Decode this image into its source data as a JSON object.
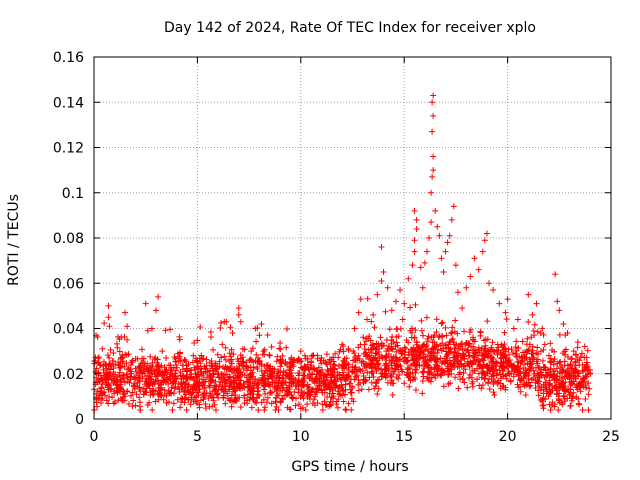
{
  "chart_data": {
    "type": "scatter",
    "title": "Day 142 of 2024, Rate Of TEC Index for receiver xplo",
    "xlabel": "GPS time / hours",
    "ylabel": "ROTI / TECUs",
    "xlim": [
      0,
      25
    ],
    "ylim": [
      0,
      0.16
    ],
    "xticks": [
      0,
      5,
      10,
      15,
      20,
      25
    ],
    "yticks": [
      0,
      0.02,
      0.04,
      0.06,
      0.08,
      0.1,
      0.12,
      0.14,
      0.16
    ],
    "xtick_labels": [
      "0",
      "5",
      "10",
      "15",
      "20",
      "25"
    ],
    "ytick_labels": [
      "0",
      "0.02",
      "0.04",
      "0.06",
      "0.08",
      "0.1",
      "0.12",
      "0.14",
      "0.16"
    ],
    "grid": true,
    "marker": "+",
    "color": "#ff0000",
    "series": [
      {
        "name": "ROTI",
        "points": [
          [
            0.1,
            0.037
          ],
          [
            0.2,
            0.025
          ],
          [
            0.4,
            0.031
          ],
          [
            0.7,
            0.05
          ],
          [
            0.7,
            0.045
          ],
          [
            0.75,
            0.041
          ],
          [
            1.5,
            0.047
          ],
          [
            1.6,
            0.041
          ],
          [
            1.6,
            0.035
          ],
          [
            2.5,
            0.051
          ],
          [
            2.6,
            0.039
          ],
          [
            2.8,
            0.04
          ],
          [
            3.1,
            0.054
          ],
          [
            3.0,
            0.048
          ],
          [
            3.3,
            0.03
          ],
          [
            4.3,
            0.022
          ],
          [
            4.8,
            0.028
          ],
          [
            5.5,
            0.021
          ],
          [
            6.2,
            0.033
          ],
          [
            6.3,
            0.043
          ],
          [
            6.4,
            0.043
          ],
          [
            6.7,
            0.038
          ],
          [
            7.0,
            0.049
          ],
          [
            7.0,
            0.046
          ],
          [
            7.1,
            0.043
          ],
          [
            7.2,
            0.031
          ],
          [
            7.6,
            0.03
          ],
          [
            7.8,
            0.04
          ],
          [
            8.0,
            0.037
          ],
          [
            8.1,
            0.042
          ],
          [
            8.5,
            0.028
          ],
          [
            9.0,
            0.026
          ],
          [
            9.6,
            0.024
          ],
          [
            10.0,
            0.03
          ],
          [
            10.2,
            0.028
          ],
          [
            10.5,
            0.025
          ],
          [
            11.0,
            0.027
          ],
          [
            11.5,
            0.022
          ],
          [
            12.0,
            0.033
          ],
          [
            12.3,
            0.031
          ],
          [
            12.6,
            0.04
          ],
          [
            12.8,
            0.047
          ],
          [
            12.9,
            0.053
          ],
          [
            13.2,
            0.044
          ],
          [
            13.5,
            0.046
          ],
          [
            13.7,
            0.055
          ],
          [
            13.9,
            0.061
          ],
          [
            14.0,
            0.065
          ],
          [
            13.9,
            0.076
          ],
          [
            14.2,
            0.058
          ],
          [
            14.4,
            0.048
          ],
          [
            14.6,
            0.052
          ],
          [
            14.8,
            0.057
          ],
          [
            15.0,
            0.051
          ],
          [
            15.2,
            0.062
          ],
          [
            15.4,
            0.068
          ],
          [
            15.5,
            0.074
          ],
          [
            15.5,
            0.079
          ],
          [
            15.6,
            0.084
          ],
          [
            15.5,
            0.092
          ],
          [
            15.6,
            0.088
          ],
          [
            15.8,
            0.067
          ],
          [
            15.9,
            0.058
          ],
          [
            16.0,
            0.069
          ],
          [
            16.1,
            0.074
          ],
          [
            16.2,
            0.08
          ],
          [
            16.3,
            0.087
          ],
          [
            16.3,
            0.1
          ],
          [
            16.35,
            0.107
          ],
          [
            16.4,
            0.11
          ],
          [
            16.4,
            0.116
          ],
          [
            16.35,
            0.127
          ],
          [
            16.4,
            0.134
          ],
          [
            16.35,
            0.14
          ],
          [
            16.4,
            0.143
          ],
          [
            16.5,
            0.092
          ],
          [
            16.6,
            0.085
          ],
          [
            16.7,
            0.081
          ],
          [
            16.8,
            0.071
          ],
          [
            16.9,
            0.065
          ],
          [
            17.0,
            0.074
          ],
          [
            17.1,
            0.078
          ],
          [
            17.2,
            0.081
          ],
          [
            17.3,
            0.088
          ],
          [
            17.4,
            0.094
          ],
          [
            17.5,
            0.068
          ],
          [
            17.6,
            0.056
          ],
          [
            17.8,
            0.049
          ],
          [
            18.0,
            0.058
          ],
          [
            18.2,
            0.063
          ],
          [
            18.4,
            0.071
          ],
          [
            18.6,
            0.066
          ],
          [
            18.8,
            0.074
          ],
          [
            18.9,
            0.079
          ],
          [
            19.0,
            0.082
          ],
          [
            19.1,
            0.06
          ],
          [
            19.3,
            0.057
          ],
          [
            19.6,
            0.051
          ],
          [
            19.9,
            0.047
          ],
          [
            20.0,
            0.053
          ],
          [
            20.3,
            0.04
          ],
          [
            20.5,
            0.044
          ],
          [
            21.0,
            0.055
          ],
          [
            21.2,
            0.046
          ],
          [
            21.4,
            0.051
          ],
          [
            21.6,
            0.038
          ],
          [
            21.8,
            0.033
          ],
          [
            22.0,
            0.028
          ],
          [
            22.3,
            0.064
          ],
          [
            22.4,
            0.052
          ],
          [
            22.5,
            0.048
          ],
          [
            22.7,
            0.042
          ],
          [
            22.9,
            0.038
          ],
          [
            23.2,
            0.03
          ],
          [
            23.4,
            0.034
          ],
          [
            23.6,
            0.029
          ],
          [
            23.8,
            0.024
          ],
          [
            24.0,
            0.02
          ]
        ]
      }
    ]
  }
}
